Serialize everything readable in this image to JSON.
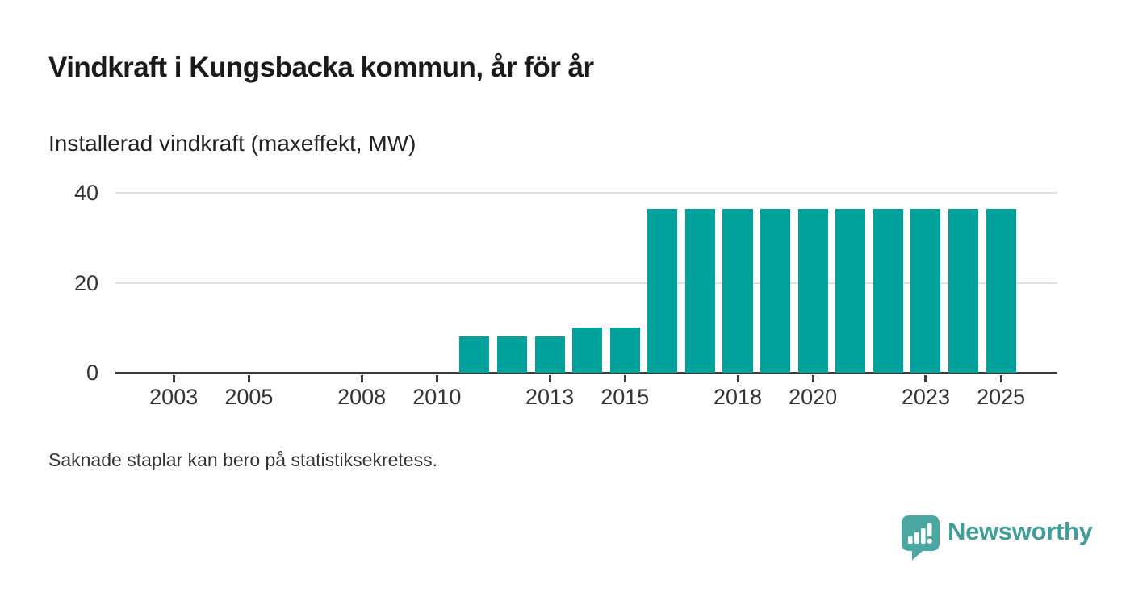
{
  "header": {
    "title": "Vindkraft i Kungsbacka kommun, år för år",
    "subtitle": "Installerad vindkraft (maxeffekt, MW)"
  },
  "footnote": {
    "text": "Saknade staplar kan bero på statistiksekretess."
  },
  "logo": {
    "text": "Newsworthy",
    "icon": "speech-bubble-bar-chart-icon"
  },
  "colors": {
    "bar": "#00a29b",
    "axis": "#3a3a3a",
    "grid": "#e0e0e0",
    "title_text": "#1a1a1a",
    "tick_text": "#333333",
    "logo_text_teal": "#3f9e98",
    "logo_icon_teal": "#4ba7a1"
  },
  "chart_data": {
    "type": "bar",
    "title": "Vindkraft i Kungsbacka kommun, år för år",
    "subtitle": "Installerad vindkraft (maxeffekt, MW)",
    "unit": "MW",
    "categories": [
      2002,
      2003,
      2004,
      2005,
      2006,
      2007,
      2008,
      2009,
      2010,
      2011,
      2012,
      2013,
      2014,
      2015,
      2016,
      2017,
      2018,
      2019,
      2020,
      2021,
      2022,
      2023,
      2024,
      2025
    ],
    "values": [
      null,
      null,
      null,
      null,
      null,
      null,
      null,
      null,
      null,
      8,
      8,
      8,
      10,
      10,
      36.5,
      36.5,
      36.5,
      36.5,
      36.5,
      36.5,
      36.5,
      36.5,
      36.5,
      36.5
    ],
    "xticks": [
      2003,
      2005,
      2008,
      2010,
      2013,
      2015,
      2018,
      2020,
      2023,
      2025
    ],
    "yticks": [
      0,
      20,
      40
    ],
    "ylim": [
      0,
      40
    ],
    "xlim": [
      2001.45,
      2026.5
    ],
    "grid": "horizontal",
    "legend": "none",
    "missing_years_note": "2002-2010 have no bars (missing data)",
    "footnote": "Saknade staplar kan bero på statistiksekretess."
  }
}
